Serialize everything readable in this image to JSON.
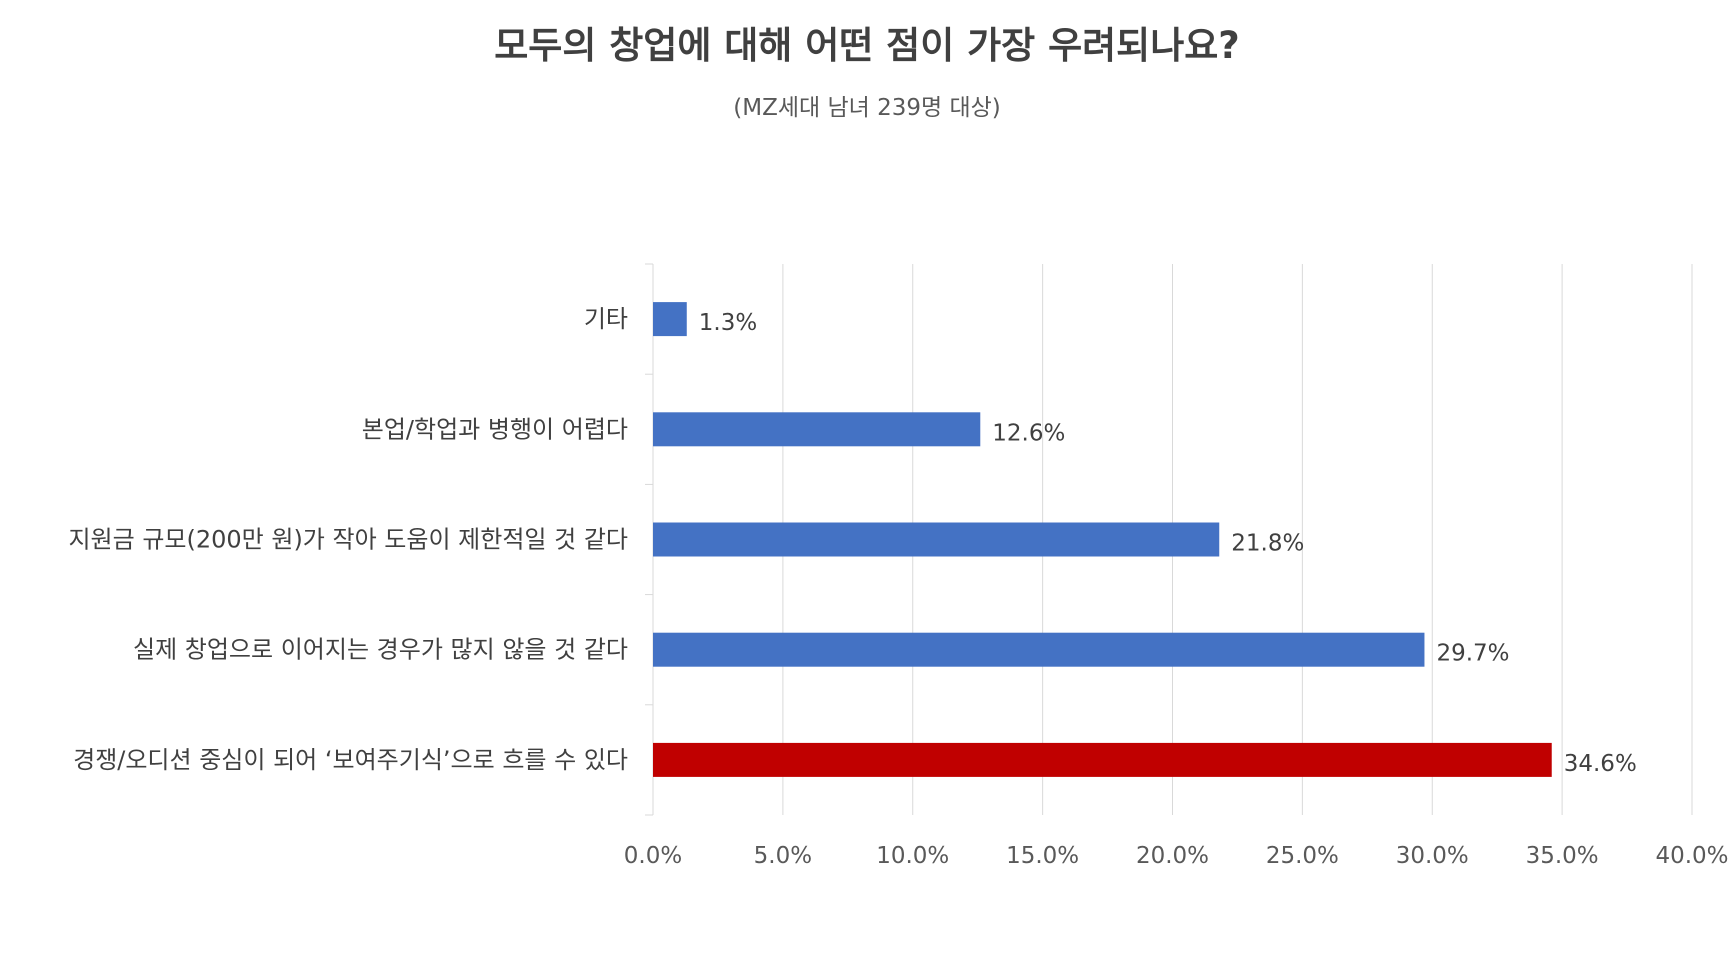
{
  "chart_data": {
    "type": "bar",
    "orientation": "horizontal",
    "title": "모두의 창업에 대해 어떤 점이 가장 우려되나요?",
    "subtitle": "(MZ세대 남녀 239명 대상)",
    "xlabel": "",
    "ylabel": "",
    "categories": [
      "기타",
      "본업/학업과 병행이 어렵다",
      "지원금 규모(200만 원)가 작아 도움이 제한적일 것 같다",
      "실제 창업으로 이어지는 경우가 많지 않을 것 같다",
      "경쟁/오디션 중심이 되어 ‘보여주기식’으로 흐를 수 있다"
    ],
    "values": [
      1.3,
      12.6,
      21.8,
      29.7,
      34.6
    ],
    "value_labels": [
      "1.3%",
      "12.6%",
      "21.8%",
      "29.7%",
      "34.6%"
    ],
    "bar_colors": [
      "#4472C4",
      "#4472C4",
      "#4472C4",
      "#4472C4",
      "#C00000"
    ],
    "xlim": [
      0,
      40
    ],
    "xticks": [
      0,
      5,
      10,
      15,
      20,
      25,
      30,
      35,
      40
    ],
    "xtick_labels": [
      "0.0%",
      "5.0%",
      "10.0%",
      "15.0%",
      "20.0%",
      "25.0%",
      "30.0%",
      "35.0%",
      "40.0%"
    ],
    "grid": true,
    "legend": "none"
  }
}
